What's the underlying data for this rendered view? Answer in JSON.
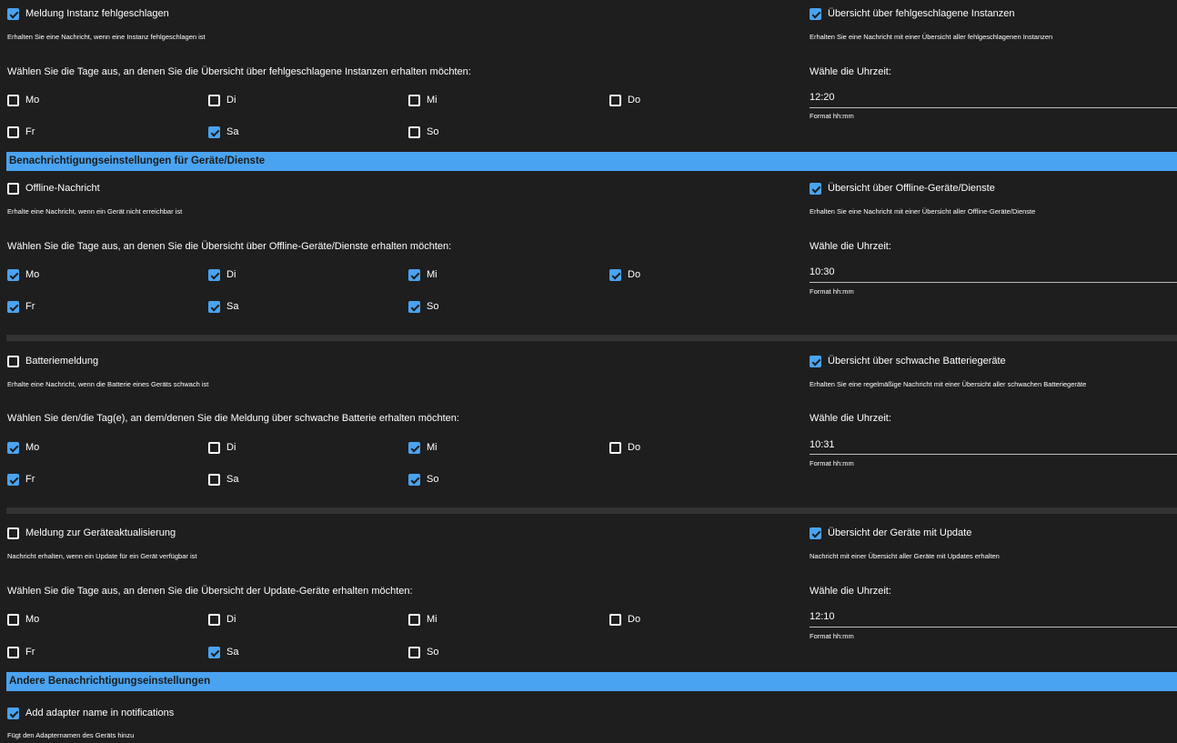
{
  "section_instances": {
    "left_toggle": {
      "label": "Meldung Instanz fehlgeschlagen",
      "help": "Erhalten Sie eine Nachricht, wenn eine Instanz fehlgeschlagen ist",
      "checked": true
    },
    "right_toggle": {
      "label": "Übersicht über fehlgeschlagene Instanzen",
      "help": "Erhalten Sie eine Nachricht mit einer Übersicht aller fehlgeschlagenen Instanzen",
      "checked": true
    },
    "days_question": "Wählen Sie die Tage aus, an denen Sie die Übersicht über fehlgeschlagene Instanzen erhalten möchten:",
    "days": {
      "mo": "Mo",
      "di": "Di",
      "mi": "Mi",
      "do": "Do",
      "fr": "Fr",
      "sa": "Sa",
      "so": "So"
    },
    "days_checked": {
      "mo": false,
      "di": false,
      "mi": false,
      "do": false,
      "fr": false,
      "sa": true,
      "so": false
    },
    "time_label": "Wähle die Uhrzeit:",
    "time_value": "12:20",
    "time_format": "Format hh:mm"
  },
  "band_devices": "Benachrichtigungseinstellungen für Geräte/Dienste",
  "section_offline": {
    "left_toggle": {
      "label": "Offline-Nachricht",
      "help": "Erhalte eine Nachricht, wenn ein Gerät nicht erreichbar ist",
      "checked": false
    },
    "right_toggle": {
      "label": "Übersicht über Offline-Geräte/Dienste",
      "help": "Erhalten Sie eine Nachricht mit einer Übersicht aller Offline-Geräte/Dienste",
      "checked": true
    },
    "days_question": "Wählen Sie die Tage aus, an denen Sie die Übersicht über Offline-Geräte/Dienste erhalten möchten:",
    "days": {
      "mo": "Mo",
      "di": "Di",
      "mi": "Mi",
      "do": "Do",
      "fr": "Fr",
      "sa": "Sa",
      "so": "So"
    },
    "days_checked": {
      "mo": true,
      "di": true,
      "mi": true,
      "do": true,
      "fr": true,
      "sa": true,
      "so": true
    },
    "time_label": "Wähle die Uhrzeit:",
    "time_value": "10:30",
    "time_format": "Format hh:mm"
  },
  "section_battery": {
    "left_toggle": {
      "label": "Batteriemeldung",
      "help": "Erhalte eine Nachricht, wenn die Batterie eines Geräts schwach ist",
      "checked": false
    },
    "right_toggle": {
      "label": "Übersicht über schwache Batteriegeräte",
      "help": "Erhalten Sie eine regelmäßige Nachricht mit einer Übersicht aller schwachen Batteriegeräte",
      "checked": true
    },
    "days_question": "Wählen Sie den/die Tag(e), an dem/denen Sie die Meldung über schwache Batterie erhalten möchten:",
    "days": {
      "mo": "Mo",
      "di": "Di",
      "mi": "Mi",
      "do": "Do",
      "fr": "Fr",
      "sa": "Sa",
      "so": "So"
    },
    "days_checked": {
      "mo": true,
      "di": false,
      "mi": true,
      "do": false,
      "fr": true,
      "sa": false,
      "so": true
    },
    "time_label": "Wähle die Uhrzeit:",
    "time_value": "10:31",
    "time_format": "Format hh:mm"
  },
  "section_update": {
    "left_toggle": {
      "label": "Meldung zur Geräteaktualisierung",
      "help": "Nachricht erhalten, wenn ein Update für ein Gerät verfügbar ist",
      "checked": false
    },
    "right_toggle": {
      "label": "Übersicht der Geräte mit Update",
      "help": "Nachricht mit einer Übersicht aller Geräte mit Updates erhalten",
      "checked": true
    },
    "days_question": "Wählen Sie die Tage aus, an denen Sie die Übersicht der Update-Geräte erhalten möchten:",
    "days": {
      "mo": "Mo",
      "di": "Di",
      "mi": "Mi",
      "do": "Do",
      "fr": "Fr",
      "sa": "Sa",
      "so": "So"
    },
    "days_checked": {
      "mo": false,
      "di": false,
      "mi": false,
      "do": false,
      "fr": false,
      "sa": true,
      "so": false
    },
    "time_label": "Wähle die Uhrzeit:",
    "time_value": "12:10",
    "time_format": "Format hh:mm"
  },
  "band_other": "Andere Benachrichtigungseinstellungen",
  "section_other": {
    "adapter_toggle": {
      "label": "Add adapter name in notifications",
      "help": "Fügt den Adapternamen des Geräts hinzu",
      "checked": true
    }
  },
  "colors": {
    "accent": "#4aa3f0",
    "background": "#1e1e1e",
    "divider": "#333333"
  },
  "icons": {
    "checked": "checkbox-checked-icon",
    "unchecked": "checkbox-unchecked-icon"
  }
}
